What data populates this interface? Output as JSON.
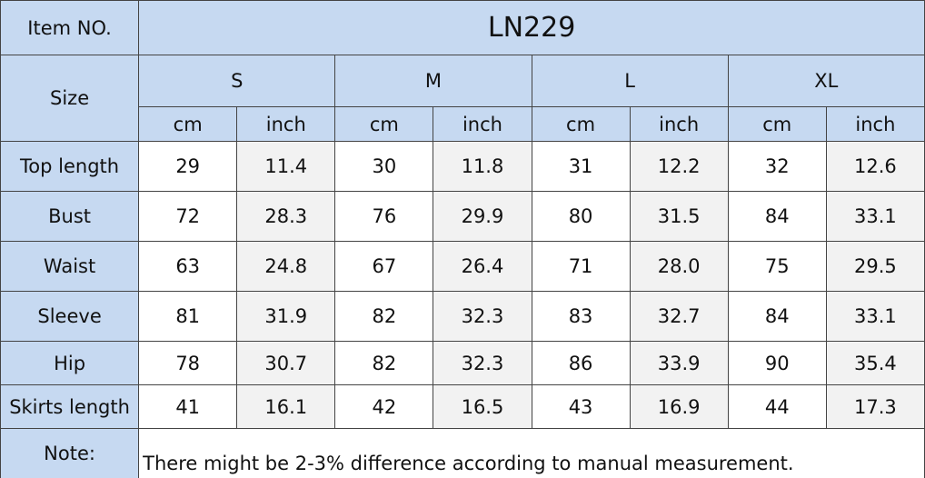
{
  "header": {
    "item_label": "Item NO.",
    "item_value": "LN229",
    "size_label": "Size",
    "sizes": [
      "S",
      "M",
      "L",
      "XL"
    ],
    "units": [
      "cm",
      "inch",
      "cm",
      "inch",
      "cm",
      "inch",
      "cm",
      "inch"
    ]
  },
  "rows": [
    {
      "label": "Top  length",
      "values": [
        "29",
        "11.4",
        "30",
        "11.8",
        "31",
        "12.2",
        "32",
        "12.6"
      ]
    },
    {
      "label": "Bust",
      "values": [
        "72",
        "28.3",
        "76",
        "29.9",
        "80",
        "31.5",
        "84",
        "33.1"
      ]
    },
    {
      "label": "Waist",
      "values": [
        "63",
        "24.8",
        "67",
        "26.4",
        "71",
        "28.0",
        "75",
        "29.5"
      ]
    },
    {
      "label": "Sleeve",
      "values": [
        "81",
        "31.9",
        "82",
        "32.3",
        "83",
        "32.7",
        "84",
        "33.1"
      ]
    },
    {
      "label": "Hip",
      "values": [
        "78",
        "30.7",
        "82",
        "32.3",
        "86",
        "33.9",
        "90",
        "35.4"
      ]
    },
    {
      "label": "Skirts length",
      "values": [
        "41",
        "16.1",
        "42",
        "16.5",
        "43",
        "16.9",
        "44",
        "17.3"
      ]
    }
  ],
  "note": {
    "label": "Note:",
    "text": "There might be 2-3% difference according to manual measurement."
  }
}
